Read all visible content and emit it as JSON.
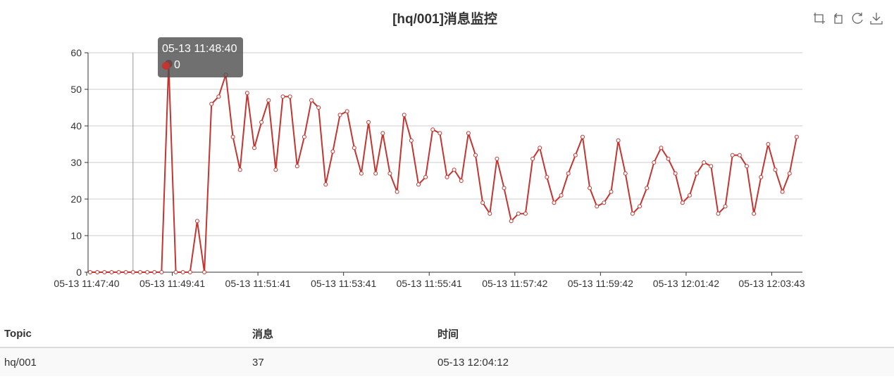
{
  "chart": {
    "title": "[hq/001]消息监控"
  },
  "toolbox": {
    "icons": [
      "zoom-icon",
      "zoom-reset-icon",
      "restore-icon",
      "save-image-icon"
    ]
  },
  "tooltip": {
    "time": "05-13 11:48:40",
    "value": "0"
  },
  "colors": {
    "series": "#c23531",
    "grid": "#cccccc",
    "axis": "#333333"
  },
  "chart_data": {
    "type": "line",
    "ylim": [
      0,
      60
    ],
    "yticks": [
      0,
      10,
      20,
      30,
      40,
      50,
      60
    ],
    "xticks": [
      "05-13 11:47:40",
      "05-13 11:49:41",
      "05-13 11:51:41",
      "05-13 11:53:41",
      "05-13 11:55:41",
      "05-13 11:57:42",
      "05-13 11:59:42",
      "05-13 12:01:42",
      "05-13 12:03:43"
    ],
    "grid": true,
    "series": [
      {
        "values": [
          0,
          0,
          0,
          0,
          0,
          0,
          0,
          0,
          0,
          0,
          0,
          57,
          0,
          0,
          0,
          14,
          0,
          46,
          48,
          54,
          37,
          28,
          49,
          34,
          41,
          47,
          28,
          48,
          48,
          29,
          37,
          47,
          45,
          24,
          33,
          43,
          44,
          34,
          27,
          41,
          27,
          38,
          27,
          22,
          43,
          36,
          24,
          26,
          39,
          38,
          26,
          28,
          25,
          38,
          32,
          19,
          16,
          31,
          23,
          14,
          16,
          16,
          31,
          34,
          26,
          19,
          21,
          27,
          32,
          37,
          23,
          18,
          19,
          22,
          36,
          27,
          16,
          18,
          23,
          30,
          34,
          31,
          27,
          19,
          21,
          27,
          30,
          29,
          16,
          18,
          32,
          32,
          29,
          16,
          26,
          35,
          28,
          22,
          27,
          37
        ]
      }
    ]
  },
  "table": {
    "headers": [
      "Topic",
      "消息",
      "时间"
    ],
    "rows": [
      [
        "hq/001",
        "37",
        "05-13 12:04:12"
      ]
    ]
  }
}
